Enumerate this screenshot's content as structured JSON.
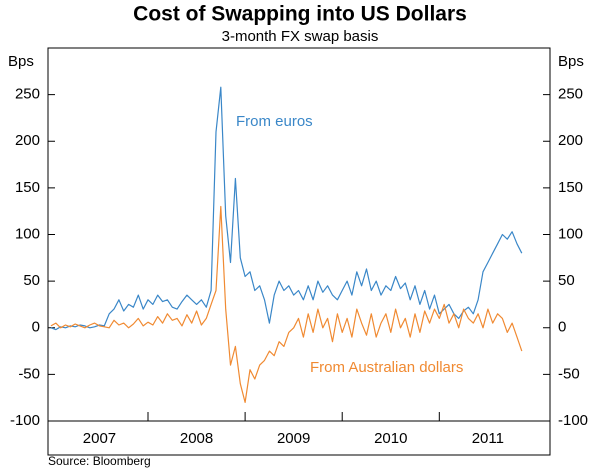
{
  "chart_data": {
    "type": "line",
    "title": "Cost of Swapping into US Dollars",
    "subtitle": "3-month FX swap basis",
    "y_unit_left": "Bps",
    "y_unit_right": "Bps",
    "source": "Source: Bloomberg",
    "xlim": [
      2006.97,
      2012.14
    ],
    "year_boundaries": [
      2008,
      2009,
      2010,
      2011
    ],
    "year_labels": [
      {
        "value": 2007.5,
        "label": "2007"
      },
      {
        "value": 2008.5,
        "label": "2008"
      },
      {
        "value": 2009.5,
        "label": "2009"
      },
      {
        "value": 2010.5,
        "label": "2010"
      },
      {
        "value": 2011.5,
        "label": "2011"
      }
    ],
    "ylim": [
      -100,
      300
    ],
    "yticks": [
      -100,
      -50,
      0,
      50,
      100,
      150,
      200,
      250
    ],
    "y2lim": [
      -100,
      300
    ],
    "y2ticks": [
      -100,
      -50,
      0,
      50,
      100,
      150,
      200,
      250
    ],
    "x": [
      2007.0,
      2007.05,
      2007.1,
      2007.15,
      2007.2,
      2007.25,
      2007.3,
      2007.35,
      2007.4,
      2007.45,
      2007.5,
      2007.55,
      2007.6,
      2007.65,
      2007.7,
      2007.75,
      2007.8,
      2007.85,
      2007.9,
      2007.95,
      2008.0,
      2008.05,
      2008.1,
      2008.15,
      2008.2,
      2008.25,
      2008.3,
      2008.35,
      2008.4,
      2008.45,
      2008.5,
      2008.55,
      2008.6,
      2008.65,
      2008.7,
      2008.75,
      2008.8,
      2008.85,
      2008.9,
      2008.95,
      2009.0,
      2009.05,
      2009.1,
      2009.15,
      2009.2,
      2009.25,
      2009.3,
      2009.35,
      2009.4,
      2009.45,
      2009.5,
      2009.55,
      2009.6,
      2009.65,
      2009.7,
      2009.75,
      2009.8,
      2009.85,
      2009.9,
      2009.95,
      2010.0,
      2010.05,
      2010.1,
      2010.15,
      2010.2,
      2010.25,
      2010.3,
      2010.35,
      2010.4,
      2010.45,
      2010.5,
      2010.55,
      2010.6,
      2010.65,
      2010.7,
      2010.75,
      2010.8,
      2010.85,
      2010.9,
      2010.95,
      2011.0,
      2011.05,
      2011.1,
      2011.15,
      2011.2,
      2011.25,
      2011.3,
      2011.35,
      2011.4,
      2011.45,
      2011.5,
      2011.55,
      2011.6,
      2011.65,
      2011.7,
      2011.75,
      2011.8,
      2011.85
    ],
    "series": [
      {
        "name": "From euros",
        "color": "#3a87c8",
        "values": [
          0,
          -2,
          1,
          0,
          2,
          1,
          3,
          2,
          0,
          1,
          3,
          2,
          15,
          20,
          30,
          18,
          25,
          22,
          35,
          20,
          30,
          25,
          35,
          28,
          30,
          22,
          20,
          28,
          35,
          30,
          25,
          30,
          22,
          40,
          210,
          258,
          120,
          70,
          160,
          75,
          55,
          60,
          40,
          45,
          30,
          5,
          35,
          50,
          40,
          45,
          35,
          40,
          30,
          45,
          30,
          50,
          38,
          45,
          35,
          30,
          40,
          50,
          35,
          60,
          45,
          63,
          40,
          50,
          35,
          45,
          40,
          55,
          42,
          48,
          30,
          45,
          25,
          40,
          20,
          35,
          15,
          20,
          25,
          15,
          10,
          18,
          22,
          15,
          30,
          60,
          70,
          80,
          90,
          100,
          95,
          103,
          90,
          80
        ]
      },
      {
        "name": "From Australian dollars",
        "color": "#f08a32",
        "values": [
          2,
          5,
          0,
          3,
          1,
          4,
          2,
          0,
          3,
          5,
          2,
          1,
          0,
          8,
          3,
          5,
          0,
          4,
          10,
          2,
          6,
          3,
          12,
          5,
          15,
          8,
          10,
          2,
          14,
          5,
          18,
          3,
          10,
          25,
          40,
          130,
          20,
          -40,
          -20,
          -60,
          -80,
          -45,
          -55,
          -40,
          -35,
          -25,
          -30,
          -15,
          -20,
          -5,
          0,
          10,
          -10,
          15,
          -5,
          20,
          0,
          10,
          -15,
          15,
          -5,
          10,
          -10,
          20,
          5,
          -8,
          15,
          -10,
          5,
          15,
          -5,
          20,
          0,
          10,
          -10,
          15,
          -5,
          18,
          5,
          20,
          10,
          25,
          5,
          15,
          0,
          20,
          10,
          5,
          15,
          0,
          20,
          5,
          15,
          10,
          -5,
          5,
          -10,
          -25
        ]
      }
    ]
  }
}
